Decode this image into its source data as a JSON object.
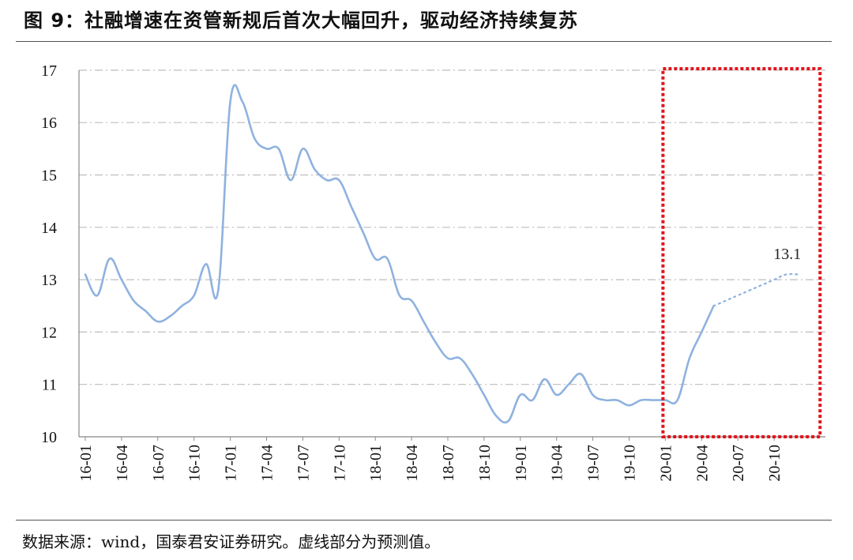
{
  "header": {
    "title": "图 9：社融增速在资管新规后首次大幅回升，驱动经济持续复苏"
  },
  "footer": {
    "source": "数据来源：wind，国泰君安证券研究。虚线部分为预测值。"
  },
  "colors": {
    "series": "#8fb2df",
    "highlight_box": "#e0141e",
    "grid": "#bdbdbd"
  },
  "chart_data": {
    "type": "line",
    "title": "",
    "xlabel": "",
    "ylabel": "",
    "ylim": [
      10,
      17
    ],
    "yticks": [
      10,
      11,
      12,
      13,
      14,
      15,
      16,
      17
    ],
    "xtick_labels": [
      "16-01",
      "16-04",
      "16-07",
      "16-10",
      "17-01",
      "17-04",
      "17-07",
      "17-10",
      "18-01",
      "18-04",
      "18-07",
      "18-10",
      "19-01",
      "19-04",
      "19-07",
      "19-10",
      "20-01",
      "20-04",
      "20-07",
      "20-10"
    ],
    "grid": "horizontal dash-dot",
    "annotations": [
      {
        "text": "13.1",
        "x": "20-12"
      }
    ],
    "highlight_range": {
      "from": "20-01",
      "to": "21-02"
    },
    "series": [
      {
        "style": "solid",
        "x": [
          "16-01",
          "16-02",
          "16-03",
          "16-04",
          "16-05",
          "16-06",
          "16-07",
          "16-08",
          "16-09",
          "16-10",
          "16-11",
          "16-12",
          "17-01",
          "17-02",
          "17-03",
          "17-04",
          "17-05",
          "17-06",
          "17-07",
          "17-08",
          "17-09",
          "17-10",
          "17-11",
          "17-12",
          "18-01",
          "18-02",
          "18-03",
          "18-04",
          "18-05",
          "18-06",
          "18-07",
          "18-08",
          "18-09",
          "18-10",
          "18-11",
          "18-12",
          "19-01",
          "19-02",
          "19-03",
          "19-04",
          "19-05",
          "19-06",
          "19-07",
          "19-08",
          "19-09",
          "19-10",
          "19-11",
          "19-12",
          "20-01",
          "20-02",
          "20-03",
          "20-04",
          "20-05"
        ],
        "values": [
          13.1,
          12.7,
          13.4,
          13.0,
          12.6,
          12.4,
          12.2,
          12.3,
          12.5,
          12.7,
          13.3,
          12.8,
          16.4,
          16.4,
          15.7,
          15.5,
          15.5,
          14.9,
          15.5,
          15.1,
          14.9,
          14.9,
          14.4,
          13.9,
          13.4,
          13.4,
          12.7,
          12.6,
          12.2,
          11.8,
          11.5,
          11.5,
          11.2,
          10.8,
          10.4,
          10.3,
          10.8,
          10.7,
          11.1,
          10.8,
          11.0,
          11.2,
          10.8,
          10.7,
          10.7,
          10.6,
          10.7,
          10.7,
          10.7,
          10.7,
          11.5,
          12.0,
          12.5
        ]
      },
      {
        "style": "dotted",
        "x": [
          "20-05",
          "20-06",
          "20-07",
          "20-08",
          "20-09",
          "20-10",
          "20-11",
          "20-12"
        ],
        "values": [
          12.5,
          12.6,
          12.7,
          12.8,
          12.9,
          13.0,
          13.1,
          13.1
        ]
      }
    ]
  }
}
